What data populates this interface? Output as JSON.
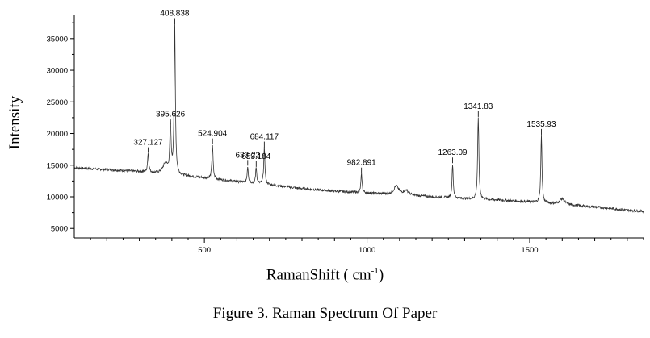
{
  "caption": "Figure 3. Raman Spectrum Of Paper",
  "chart_data": {
    "type": "line",
    "title": "",
    "xlabel": {
      "prefix": "RamanShift ( cm",
      "sup": "-1",
      "suffix": ")"
    },
    "ylabel": "Intensity",
    "xlim": [
      100,
      1850
    ],
    "ylim": [
      3500,
      38800
    ],
    "x_ticks": [
      500,
      1000,
      1500
    ],
    "y_ticks": [
      5000,
      10000,
      15000,
      20000,
      25000,
      30000,
      35000
    ],
    "grid": false,
    "line_color": "#333333",
    "baseline": [
      [
        100,
        14600
      ],
      [
        200,
        14300
      ],
      [
        300,
        14000
      ],
      [
        400,
        13500
      ],
      [
        500,
        13000
      ],
      [
        600,
        12400
      ],
      [
        700,
        11900
      ],
      [
        800,
        11300
      ],
      [
        900,
        10900
      ],
      [
        1000,
        10600
      ],
      [
        1100,
        10300
      ],
      [
        1200,
        10000
      ],
      [
        1300,
        9700
      ],
      [
        1400,
        9500
      ],
      [
        1500,
        9200
      ],
      [
        1600,
        8800
      ],
      [
        1700,
        8400
      ],
      [
        1800,
        7900
      ],
      [
        1850,
        7700
      ]
    ],
    "peaks": [
      {
        "x": 327.127,
        "y": 16800,
        "label": "327.127"
      },
      {
        "x": 395.626,
        "y": 21300,
        "label": "395.626"
      },
      {
        "x": 408.838,
        "y": 37200,
        "label": "408.838"
      },
      {
        "x": 524.904,
        "y": 18200,
        "label": "524.904"
      },
      {
        "x": 633.22,
        "y": 14800,
        "label": "633.22"
      },
      {
        "x": 659.184,
        "y": 14600,
        "label": "659.184"
      },
      {
        "x": 684.117,
        "y": 17700,
        "label": "684.117"
      },
      {
        "x": 982.891,
        "y": 13600,
        "label": "982.891"
      },
      {
        "x": 1263.09,
        "y": 15200,
        "label": "1263.09"
      },
      {
        "x": 1341.83,
        "y": 22500,
        "label": "1341.83"
      },
      {
        "x": 1535.93,
        "y": 19700,
        "label": "1535.93"
      }
    ],
    "minor_bumps": [
      {
        "x": 380,
        "y": 15200
      },
      {
        "x": 1090,
        "y": 11700
      },
      {
        "x": 1120,
        "y": 11000
      },
      {
        "x": 1600,
        "y": 9700
      }
    ]
  }
}
